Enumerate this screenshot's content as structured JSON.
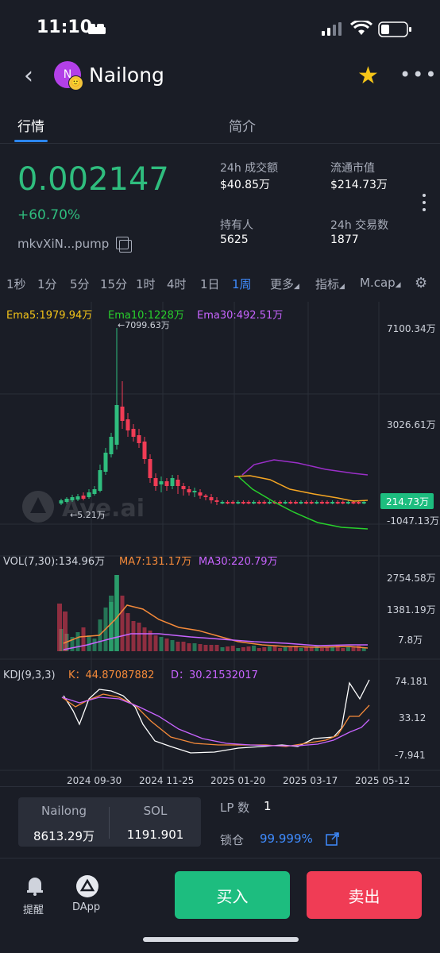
{
  "status_bar": {
    "time": "11:10"
  },
  "header": {
    "title": "Nailong",
    "avatar_letter": "N"
  },
  "tabs": [
    {
      "label": "行情"
    },
    {
      "label": "简介"
    }
  ],
  "price": {
    "value": "0.002147",
    "change": "+60.70%",
    "address": "mkvXiN...pump"
  },
  "stats": {
    "volume_24h": {
      "label": "24h 成交额",
      "value": "$40.85万"
    },
    "market_cap": {
      "label": "流通市值",
      "value": "$214.73万"
    },
    "holders": {
      "label": "持有人",
      "value": "5625"
    },
    "tx_24h": {
      "label": "24h 交易数",
      "value": "1877"
    }
  },
  "intervals": [
    "1秒",
    "1分",
    "5分",
    "15分",
    "1时",
    "4时",
    "1日",
    "1周",
    "更多",
    "指标",
    "M.cap"
  ],
  "active_interval": "1周",
  "chart_data": [
    {
      "type": "candlestick",
      "legend": [
        "Ema5:1979.94万",
        "Ema10:1228万",
        "Ema30:492.51万"
      ],
      "y_ticks": [
        "7100.34万",
        "3026.61万",
        "-1047.13万"
      ],
      "current_value_label": "214.73万",
      "annotations": [
        "←7099.63万",
        "←5.21万"
      ],
      "watermark": "Ave.ai",
      "ylim": [
        -1047.13,
        7100.34
      ],
      "colors": {
        "up": "#2fbd7e",
        "down": "#f03c55",
        "ema5": "#f5a623",
        "ema10": "#28d02c",
        "ema30": "#9b2fc9"
      }
    },
    {
      "type": "bar",
      "legend": [
        "VOL(7,30):134.96万",
        "MA7:131.17万",
        "MA30:220.79万"
      ],
      "y_ticks": [
        "2754.58万",
        "1381.19万",
        "7.8万"
      ]
    },
    {
      "type": "line",
      "legend": [
        "KDJ(9,3,3)",
        "K：44.87087882",
        "D：30.21532017"
      ],
      "y_ticks": [
        "74.181",
        "33.12",
        "-7.941"
      ],
      "x_ticks": [
        "2024 09-30",
        "2024 11-25",
        "2025 01-20",
        "2025 03-17",
        "2025 05-12"
      ]
    }
  ],
  "pair": {
    "token_name": "Nailong",
    "token_amount": "8613.29万",
    "quote_name": "SOL",
    "quote_amount": "1191.901"
  },
  "lp": {
    "label": "LP 数",
    "value": "1",
    "lock_label": "锁仓",
    "lock_value": "99.999%"
  },
  "nav": [
    {
      "label": "提醒"
    },
    {
      "label": "DApp"
    }
  ],
  "actions": {
    "buy": "买入",
    "sell": "卖出"
  }
}
